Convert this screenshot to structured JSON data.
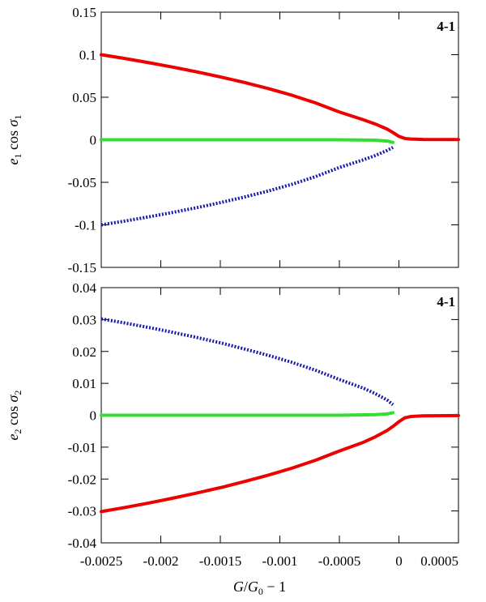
{
  "chart_data": [
    {
      "type": "line",
      "panel_label": "4-1",
      "ylabel": {
        "var": "e",
        "sub": "1",
        "fn": "cos",
        "angle": "σ",
        "angle_sub": "1"
      },
      "xlim": [
        -0.0025,
        0.0005
      ],
      "ylim": [
        -0.15,
        0.15
      ],
      "x_ticks": [
        -0.0025,
        -0.002,
        -0.0015,
        -0.001,
        -0.0005,
        0,
        0.0005
      ],
      "y_ticks": [
        -0.15,
        -0.1,
        -0.05,
        0,
        0.05,
        0.1,
        0.15
      ],
      "y_tick_labels": [
        "-0.15",
        "-0.1",
        "-0.05",
        "0",
        "0.05",
        "0.1",
        "0.15"
      ],
      "grid": false,
      "series": [
        {
          "color": "#ee0000",
          "style": "solid",
          "x": [
            -0.0025,
            -0.0023,
            -0.0021,
            -0.0019,
            -0.0017,
            -0.0015,
            -0.0013,
            -0.0011,
            -0.0009,
            -0.0007,
            -0.0005,
            -0.0003,
            -0.0002,
            -0.0001,
            -5e-05,
            0,
            5e-05,
            0.0001,
            0.0002,
            0.0005
          ],
          "y": [
            0.1,
            0.0955,
            0.0906,
            0.0854,
            0.0799,
            0.0739,
            0.0674,
            0.0603,
            0.0524,
            0.0433,
            0.0326,
            0.0236,
            0.0186,
            0.0126,
            0.0085,
            0.004,
            0.0015,
            0.0008,
            0.0004,
            0.0003
          ]
        },
        {
          "color": "#33dd33",
          "style": "solid",
          "x": [
            -0.0025,
            -0.002,
            -0.0015,
            -0.001,
            -0.0005,
            -0.0002,
            -0.0001,
            -5e-05
          ],
          "y": [
            0,
            0,
            0,
            0,
            0,
            -0.0005,
            -0.0015,
            -0.003
          ]
        },
        {
          "color": "#1a1aa6",
          "style": "dotted",
          "x": [
            -0.0025,
            -0.0023,
            -0.0021,
            -0.0019,
            -0.0017,
            -0.0015,
            -0.0013,
            -0.0011,
            -0.0009,
            -0.0007,
            -0.0005,
            -0.0003,
            -0.0002,
            -0.0001,
            -5e-05
          ],
          "y": [
            -0.1,
            -0.0955,
            -0.0906,
            -0.0854,
            -0.0799,
            -0.0739,
            -0.0674,
            -0.0603,
            -0.0524,
            -0.0433,
            -0.0326,
            -0.0236,
            -0.0186,
            -0.0126,
            -0.009
          ]
        }
      ]
    },
    {
      "type": "line",
      "panel_label": "4-1",
      "ylabel": {
        "var": "e",
        "sub": "2",
        "fn": "cos",
        "angle": "σ",
        "angle_sub": "2"
      },
      "xlabel": {
        "num": "G",
        "den": "G",
        "den_sub": "0",
        "rest": " − 1"
      },
      "xlim": [
        -0.0025,
        0.0005
      ],
      "ylim": [
        -0.04,
        0.04
      ],
      "x_ticks": [
        -0.0025,
        -0.002,
        -0.0015,
        -0.001,
        -0.0005,
        0,
        0.0005
      ],
      "x_tick_labels": [
        "-0.0025",
        "-0.002",
        "-0.0015",
        "-0.001",
        "-0.0005",
        "0",
        "0.0005"
      ],
      "y_ticks": [
        -0.04,
        -0.03,
        -0.02,
        -0.01,
        0,
        0.01,
        0.02,
        0.03,
        0.04
      ],
      "y_tick_labels": [
        "-0.04",
        "-0.03",
        "-0.02",
        "-0.01",
        "0",
        "0.01",
        "0.02",
        "0.03",
        "0.04"
      ],
      "grid": false,
      "series": [
        {
          "color": "#ee0000",
          "style": "solid",
          "x": [
            -0.0025,
            -0.0023,
            -0.0021,
            -0.0019,
            -0.0017,
            -0.0015,
            -0.0013,
            -0.0011,
            -0.0009,
            -0.0007,
            -0.0005,
            -0.0003,
            -0.0002,
            -0.0001,
            -5e-05,
            0,
            5e-05,
            0.0001,
            0.0002,
            0.0005
          ],
          "y": [
            -0.0302,
            -0.0289,
            -0.0275,
            -0.026,
            -0.0244,
            -0.0227,
            -0.0208,
            -0.0188,
            -0.0166,
            -0.0141,
            -0.0112,
            -0.0085,
            -0.0068,
            -0.0048,
            -0.0035,
            -0.002,
            -0.0008,
            -0.0004,
            -0.0002,
            -0.0001
          ]
        },
        {
          "color": "#33dd33",
          "style": "solid",
          "x": [
            -0.0025,
            -0.002,
            -0.0015,
            -0.001,
            -0.0005,
            -0.0002,
            -0.0001,
            -5e-05
          ],
          "y": [
            0,
            0,
            0,
            0,
            0,
            0.0002,
            0.0004,
            0.0008
          ]
        },
        {
          "color": "#1a1aa6",
          "style": "dotted",
          "x": [
            -0.0025,
            -0.0023,
            -0.0021,
            -0.0019,
            -0.0017,
            -0.0015,
            -0.0013,
            -0.0011,
            -0.0009,
            -0.0007,
            -0.0005,
            -0.0003,
            -0.0002,
            -0.0001,
            -5e-05
          ],
          "y": [
            0.0302,
            0.0289,
            0.0275,
            0.026,
            0.0244,
            0.0227,
            0.0208,
            0.0188,
            0.0166,
            0.0141,
            0.0112,
            0.0085,
            0.0068,
            0.0048,
            0.0033
          ]
        }
      ]
    }
  ]
}
